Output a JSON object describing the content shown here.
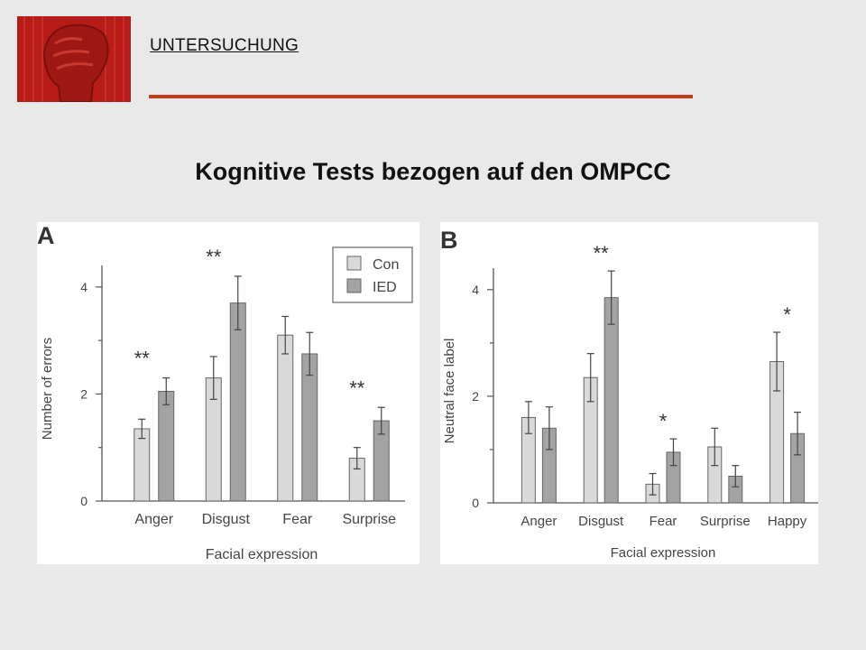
{
  "header": {
    "section_label": "UNTERSUCHUNG",
    "title": "Kognitive Tests bezogen auf den OMPCC",
    "accent_color": "#c23b1d",
    "logo_icon": "raised-fist-icon"
  },
  "chart_data": [
    {
      "type": "bar",
      "panel_label": "A",
      "categories": [
        "Anger",
        "Disgust",
        "Fear",
        "Surprise"
      ],
      "series": [
        {
          "name": "Con",
          "color": "#d9d9d9",
          "values": [
            1.35,
            2.3,
            3.1,
            0.8
          ],
          "errors": [
            0.18,
            0.4,
            0.35,
            0.2
          ]
        },
        {
          "name": "IED",
          "color": "#a3a3a3",
          "values": [
            2.05,
            3.7,
            2.75,
            1.5
          ],
          "errors": [
            0.25,
            0.5,
            0.4,
            0.25
          ]
        }
      ],
      "annotations": [
        "**",
        "**",
        "",
        "**"
      ],
      "xlabel": "Facial expression",
      "ylabel": "Number of errors",
      "yticks": [
        0,
        2,
        4
      ],
      "ylim": [
        0,
        4.2
      ],
      "legend": "top-right"
    },
    {
      "type": "bar",
      "panel_label": "B",
      "categories": [
        "Anger",
        "Disgust",
        "Fear",
        "Surprise",
        "Happy"
      ],
      "series": [
        {
          "color": "#d9d9d9",
          "values": [
            1.6,
            2.35,
            0.35,
            1.05,
            2.65
          ],
          "errors": [
            0.3,
            0.45,
            0.2,
            0.35,
            0.55
          ]
        },
        {
          "color": "#a3a3a3",
          "values": [
            1.4,
            3.85,
            0.95,
            0.5,
            1.3
          ],
          "errors": [
            0.4,
            0.5,
            0.25,
            0.2,
            0.4
          ]
        }
      ],
      "annotations": [
        "",
        "**",
        "*",
        "",
        "*"
      ],
      "xlabel": "Facial expression",
      "ylabel": "Neutral face label",
      "yticks": [
        0,
        2,
        4
      ],
      "ylim": [
        0,
        4.2
      ],
      "legend": "none"
    }
  ]
}
